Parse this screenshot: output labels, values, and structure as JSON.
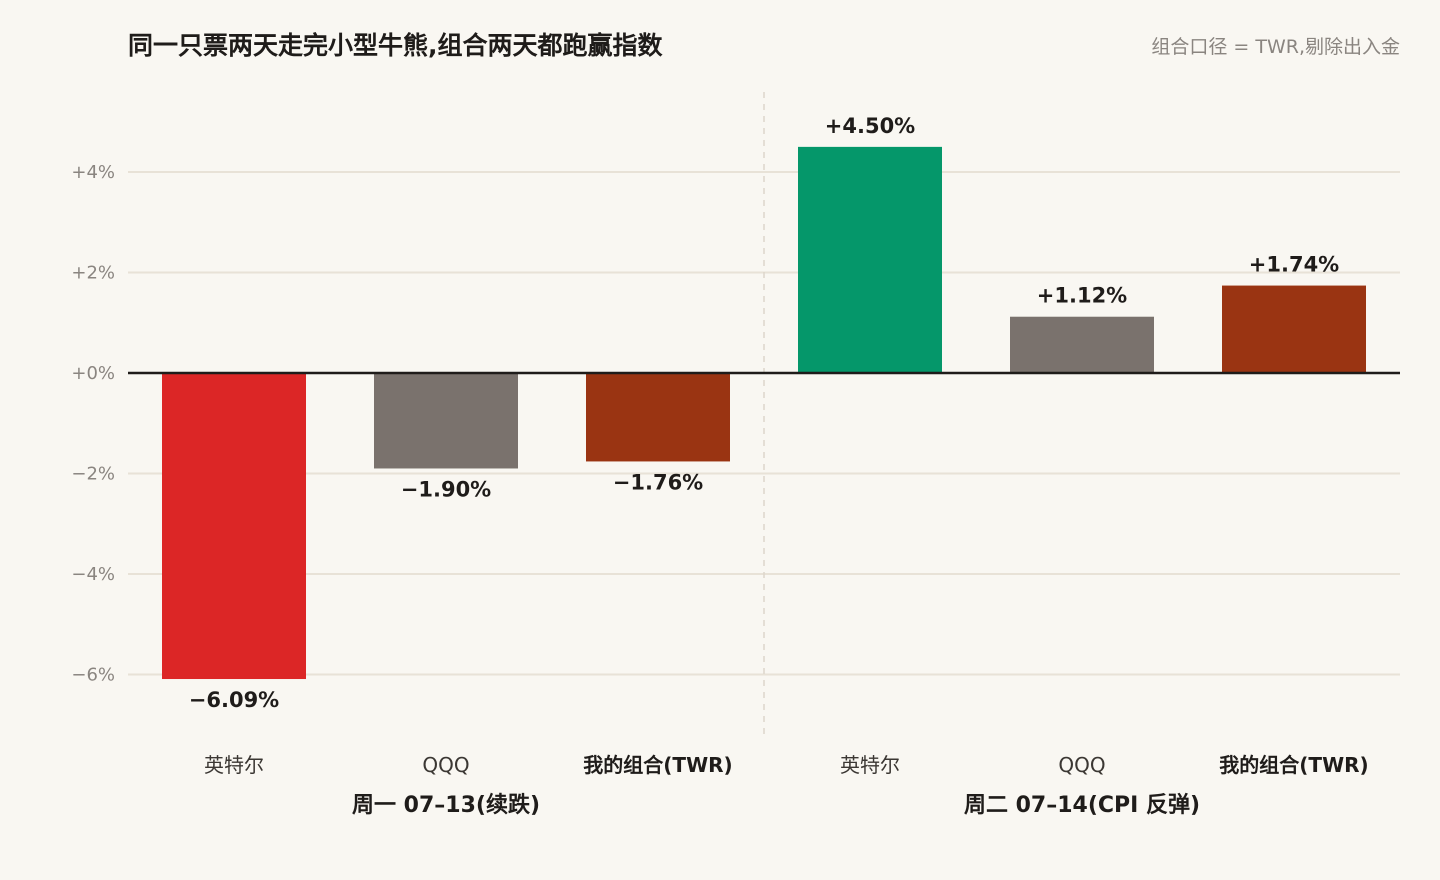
{
  "title": "同一只票两天走完小型牛熊,组合两天都跑赢指数",
  "note": "组合口径 = TWR,剔除出入金",
  "colors": {
    "down_stock": "#dc2626",
    "up_stock": "#05976a",
    "index": "#7a726d",
    "portfolio": "#9a3412",
    "grid": "#e8e2d7",
    "zero_line": "#1f1c1a"
  },
  "chart_data": {
    "type": "bar",
    "ylim": [
      -7.2,
      5.4
    ],
    "yticks": [
      {
        "value": 4,
        "label": "+4%"
      },
      {
        "value": 2,
        "label": "+2%"
      },
      {
        "value": 0,
        "label": "+0%"
      },
      {
        "value": -2,
        "label": "−2%"
      },
      {
        "value": -4,
        "label": "−4%"
      },
      {
        "value": -6,
        "label": "−6%"
      }
    ],
    "groups": [
      {
        "label": "周一 07–13(续跌)",
        "bars": [
          {
            "category": "英特尔",
            "value": -6.09,
            "label": "−6.09%",
            "color": "#dc2626",
            "bold": false
          },
          {
            "category": "QQQ",
            "value": -1.9,
            "label": "−1.90%",
            "color": "#7a726d",
            "bold": false
          },
          {
            "category": "我的组合(TWR)",
            "value": -1.76,
            "label": "−1.76%",
            "color": "#9a3412",
            "bold": true
          }
        ]
      },
      {
        "label": "周二 07–14(CPI 反弹)",
        "bars": [
          {
            "category": "英特尔",
            "value": 4.5,
            "label": "+4.50%",
            "color": "#05976a",
            "bold": false
          },
          {
            "category": "QQQ",
            "value": 1.12,
            "label": "+1.12%",
            "color": "#7a726d",
            "bold": false
          },
          {
            "category": "我的组合(TWR)",
            "value": 1.74,
            "label": "+1.74%",
            "color": "#9a3412",
            "bold": true
          }
        ]
      }
    ]
  }
}
